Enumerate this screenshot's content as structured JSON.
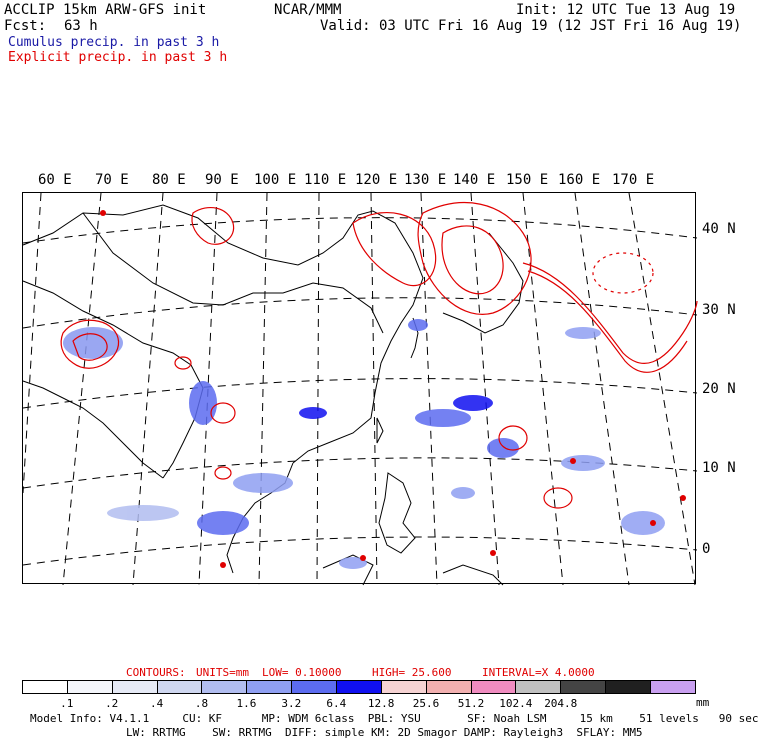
{
  "header": {
    "title": "ACCLIP 15km ARW-GFS init",
    "fcst_label": "Fcst:",
    "fcst_value": "63 h",
    "center": "NCAR/MMM",
    "init": "Init: 12 UTC Tue 13 Aug 19",
    "valid": "Valid: 03 UTC Fri 16 Aug 19 (12 JST Fri 16 Aug 19)",
    "legend_cumulus": "Cumulus precip. in past 3 h",
    "legend_explicit": "Explicit precip. in past 3 h"
  },
  "map": {
    "lon_labels": [
      "60 E",
      "70 E",
      "80 E",
      "90 E",
      "100 E",
      "110 E",
      "120 E",
      "130 E",
      "140 E",
      "150 E",
      "160 E",
      "170 E"
    ],
    "lat_labels": [
      "40 N",
      "30 N",
      "20 N",
      "10 N",
      "0"
    ],
    "colors": {
      "cumulus": "#2020e0",
      "explicit": "#e00000",
      "coast": "#000000",
      "grid": "#000000"
    }
  },
  "contours": {
    "label": "CONTOURS:",
    "units": "UNITS=mm",
    "low": "LOW= 0.10000",
    "high": "HIGH= 25.600",
    "interval": "INTERVAL=X 4.0000"
  },
  "colorbar": {
    "colors": [
      "#ffffff",
      "#f4f6fb",
      "#e6eaf6",
      "#cfd7f0",
      "#b1bdf0",
      "#8f9ff2",
      "#5c6cf0",
      "#1010f0",
      "#f6d3d3",
      "#f2b0b0",
      "#f08cc0",
      "#c0c0c0",
      "#444444",
      "#202020",
      "#c9a0f0"
    ],
    "labels": [
      ".1",
      ".2",
      ".4",
      ".8",
      "1.6",
      "3.2",
      "6.4",
      "12.8",
      "25.6",
      "51.2",
      "102.4",
      "204.8"
    ],
    "unit": "mm"
  },
  "model_info": {
    "line1": "Model Info: V4.1.1     CU: KF      MP: WDM 6class  PBL: YSU       SF: Noah LSM     15 km    51 levels   90 sec",
    "line2": "LW: RRTMG    SW: RRTMG  DIFF: simple KM: 2D Smagor DAMP: Rayleigh3  SFLAY: MM5"
  }
}
